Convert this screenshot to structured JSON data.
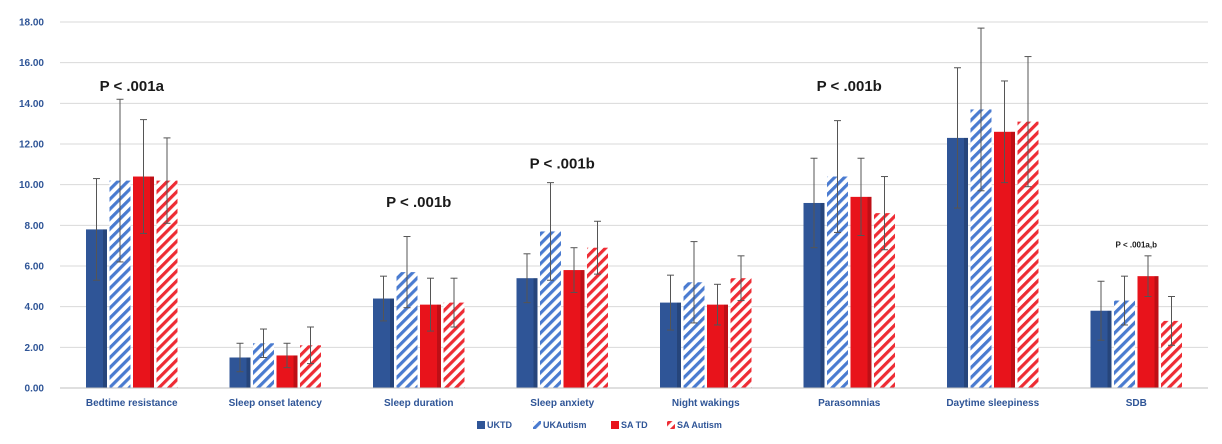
{
  "chart_data": {
    "type": "bar",
    "categories": [
      "Bedtime resistance",
      "Sleep onset latency",
      "Sleep duration",
      "Sleep anxiety",
      "Night wakings",
      "Parasomnias",
      "Daytime sleepiness",
      "SDB"
    ],
    "series": [
      {
        "name": "UKTD",
        "color": "#2f5597",
        "pattern": "solid",
        "values": [
          7.8,
          1.5,
          4.4,
          5.4,
          4.2,
          9.1,
          12.3,
          3.8
        ],
        "errors": [
          2.5,
          0.7,
          1.1,
          1.2,
          1.35,
          2.2,
          3.45,
          1.45
        ]
      },
      {
        "name": "UKAutism",
        "color": "#4a7bd0",
        "pattern": "hatch",
        "values": [
          10.2,
          2.2,
          5.7,
          7.7,
          5.2,
          10.4,
          13.7,
          4.3
        ],
        "errors": [
          4.0,
          0.7,
          1.75,
          2.4,
          2.0,
          2.75,
          4.0,
          1.2
        ]
      },
      {
        "name": "SA TD",
        "color": "#e8131b",
        "pattern": "solid",
        "values": [
          10.4,
          1.6,
          4.1,
          5.8,
          4.1,
          9.4,
          12.6,
          5.5
        ],
        "errors": [
          2.8,
          0.6,
          1.3,
          1.1,
          1.0,
          1.9,
          2.5,
          1.0
        ]
      },
      {
        "name": "SA Autism",
        "color": "#ee2c34",
        "pattern": "hatch",
        "values": [
          10.2,
          2.1,
          4.2,
          6.9,
          5.4,
          8.6,
          13.1,
          3.3
        ],
        "errors": [
          2.1,
          0.9,
          1.2,
          1.3,
          1.1,
          1.8,
          3.2,
          1.2
        ]
      }
    ],
    "ylim": [
      0,
      18
    ],
    "yticks": [
      "0.00",
      "2.00",
      "4.00",
      "6.00",
      "8.00",
      "10.00",
      "12.00",
      "14.00",
      "16.00",
      "18.00"
    ],
    "ystep": 2,
    "grid": true,
    "legend_position": "bottom",
    "annotations": [
      {
        "text": "P < .001a",
        "category_index": 0,
        "y": 14.6,
        "size": "large"
      },
      {
        "text": "P < .001b",
        "category_index": 2,
        "y": 8.9,
        "size": "large"
      },
      {
        "text": "P < .001b",
        "category_index": 3,
        "y": 10.8,
        "size": "large"
      },
      {
        "text": "P < .001b",
        "category_index": 5,
        "y": 14.6,
        "size": "large"
      },
      {
        "text": "P < .001a,b",
        "category_index": 7,
        "y": 6.9,
        "size": "small"
      }
    ],
    "title": "",
    "xlabel": "",
    "ylabel": ""
  }
}
